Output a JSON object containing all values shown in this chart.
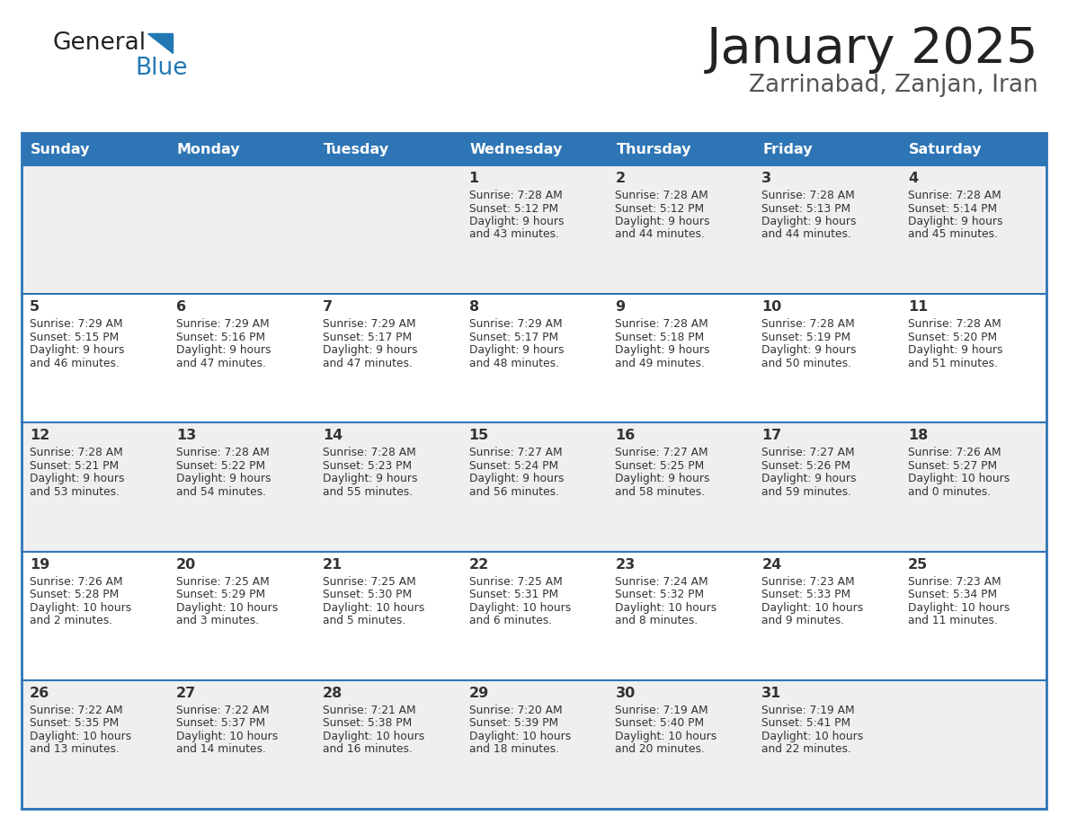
{
  "title": "January 2025",
  "subtitle": "Zarrinabad, Zanjan, Iran",
  "days_of_week": [
    "Sunday",
    "Monday",
    "Tuesday",
    "Wednesday",
    "Thursday",
    "Friday",
    "Saturday"
  ],
  "header_bg": "#2E75B6",
  "header_text": "#FFFFFF",
  "cell_bg_light": "#EFEFEF",
  "cell_bg_white": "#FFFFFF",
  "border_color": "#2E75B6",
  "day_num_color": "#333333",
  "cell_text_color": "#333333",
  "logo_general_color": "#222222",
  "logo_blue_color": "#2278B5",
  "title_color": "#222222",
  "subtitle_color": "#555555",
  "calendar_data": [
    {
      "day": 1,
      "col": 3,
      "row": 0,
      "sunrise": "7:28 AM",
      "sunset": "5:12 PM",
      "daylight": "9 hours and 43 minutes."
    },
    {
      "day": 2,
      "col": 4,
      "row": 0,
      "sunrise": "7:28 AM",
      "sunset": "5:12 PM",
      "daylight": "9 hours and 44 minutes."
    },
    {
      "day": 3,
      "col": 5,
      "row": 0,
      "sunrise": "7:28 AM",
      "sunset": "5:13 PM",
      "daylight": "9 hours and 44 minutes."
    },
    {
      "day": 4,
      "col": 6,
      "row": 0,
      "sunrise": "7:28 AM",
      "sunset": "5:14 PM",
      "daylight": "9 hours and 45 minutes."
    },
    {
      "day": 5,
      "col": 0,
      "row": 1,
      "sunrise": "7:29 AM",
      "sunset": "5:15 PM",
      "daylight": "9 hours and 46 minutes."
    },
    {
      "day": 6,
      "col": 1,
      "row": 1,
      "sunrise": "7:29 AM",
      "sunset": "5:16 PM",
      "daylight": "9 hours and 47 minutes."
    },
    {
      "day": 7,
      "col": 2,
      "row": 1,
      "sunrise": "7:29 AM",
      "sunset": "5:17 PM",
      "daylight": "9 hours and 47 minutes."
    },
    {
      "day": 8,
      "col": 3,
      "row": 1,
      "sunrise": "7:29 AM",
      "sunset": "5:17 PM",
      "daylight": "9 hours and 48 minutes."
    },
    {
      "day": 9,
      "col": 4,
      "row": 1,
      "sunrise": "7:28 AM",
      "sunset": "5:18 PM",
      "daylight": "9 hours and 49 minutes."
    },
    {
      "day": 10,
      "col": 5,
      "row": 1,
      "sunrise": "7:28 AM",
      "sunset": "5:19 PM",
      "daylight": "9 hours and 50 minutes."
    },
    {
      "day": 11,
      "col": 6,
      "row": 1,
      "sunrise": "7:28 AM",
      "sunset": "5:20 PM",
      "daylight": "9 hours and 51 minutes."
    },
    {
      "day": 12,
      "col": 0,
      "row": 2,
      "sunrise": "7:28 AM",
      "sunset": "5:21 PM",
      "daylight": "9 hours and 53 minutes."
    },
    {
      "day": 13,
      "col": 1,
      "row": 2,
      "sunrise": "7:28 AM",
      "sunset": "5:22 PM",
      "daylight": "9 hours and 54 minutes."
    },
    {
      "day": 14,
      "col": 2,
      "row": 2,
      "sunrise": "7:28 AM",
      "sunset": "5:23 PM",
      "daylight": "9 hours and 55 minutes."
    },
    {
      "day": 15,
      "col": 3,
      "row": 2,
      "sunrise": "7:27 AM",
      "sunset": "5:24 PM",
      "daylight": "9 hours and 56 minutes."
    },
    {
      "day": 16,
      "col": 4,
      "row": 2,
      "sunrise": "7:27 AM",
      "sunset": "5:25 PM",
      "daylight": "9 hours and 58 minutes."
    },
    {
      "day": 17,
      "col": 5,
      "row": 2,
      "sunrise": "7:27 AM",
      "sunset": "5:26 PM",
      "daylight": "9 hours and 59 minutes."
    },
    {
      "day": 18,
      "col": 6,
      "row": 2,
      "sunrise": "7:26 AM",
      "sunset": "5:27 PM",
      "daylight": "10 hours and 0 minutes."
    },
    {
      "day": 19,
      "col": 0,
      "row": 3,
      "sunrise": "7:26 AM",
      "sunset": "5:28 PM",
      "daylight": "10 hours and 2 minutes."
    },
    {
      "day": 20,
      "col": 1,
      "row": 3,
      "sunrise": "7:25 AM",
      "sunset": "5:29 PM",
      "daylight": "10 hours and 3 minutes."
    },
    {
      "day": 21,
      "col": 2,
      "row": 3,
      "sunrise": "7:25 AM",
      "sunset": "5:30 PM",
      "daylight": "10 hours and 5 minutes."
    },
    {
      "day": 22,
      "col": 3,
      "row": 3,
      "sunrise": "7:25 AM",
      "sunset": "5:31 PM",
      "daylight": "10 hours and 6 minutes."
    },
    {
      "day": 23,
      "col": 4,
      "row": 3,
      "sunrise": "7:24 AM",
      "sunset": "5:32 PM",
      "daylight": "10 hours and 8 minutes."
    },
    {
      "day": 24,
      "col": 5,
      "row": 3,
      "sunrise": "7:23 AM",
      "sunset": "5:33 PM",
      "daylight": "10 hours and 9 minutes."
    },
    {
      "day": 25,
      "col": 6,
      "row": 3,
      "sunrise": "7:23 AM",
      "sunset": "5:34 PM",
      "daylight": "10 hours and 11 minutes."
    },
    {
      "day": 26,
      "col": 0,
      "row": 4,
      "sunrise": "7:22 AM",
      "sunset": "5:35 PM",
      "daylight": "10 hours and 13 minutes."
    },
    {
      "day": 27,
      "col": 1,
      "row": 4,
      "sunrise": "7:22 AM",
      "sunset": "5:37 PM",
      "daylight": "10 hours and 14 minutes."
    },
    {
      "day": 28,
      "col": 2,
      "row": 4,
      "sunrise": "7:21 AM",
      "sunset": "5:38 PM",
      "daylight": "10 hours and 16 minutes."
    },
    {
      "day": 29,
      "col": 3,
      "row": 4,
      "sunrise": "7:20 AM",
      "sunset": "5:39 PM",
      "daylight": "10 hours and 18 minutes."
    },
    {
      "day": 30,
      "col": 4,
      "row": 4,
      "sunrise": "7:19 AM",
      "sunset": "5:40 PM",
      "daylight": "10 hours and 20 minutes."
    },
    {
      "day": 31,
      "col": 5,
      "row": 4,
      "sunrise": "7:19 AM",
      "sunset": "5:41 PM",
      "daylight": "10 hours and 22 minutes."
    }
  ]
}
